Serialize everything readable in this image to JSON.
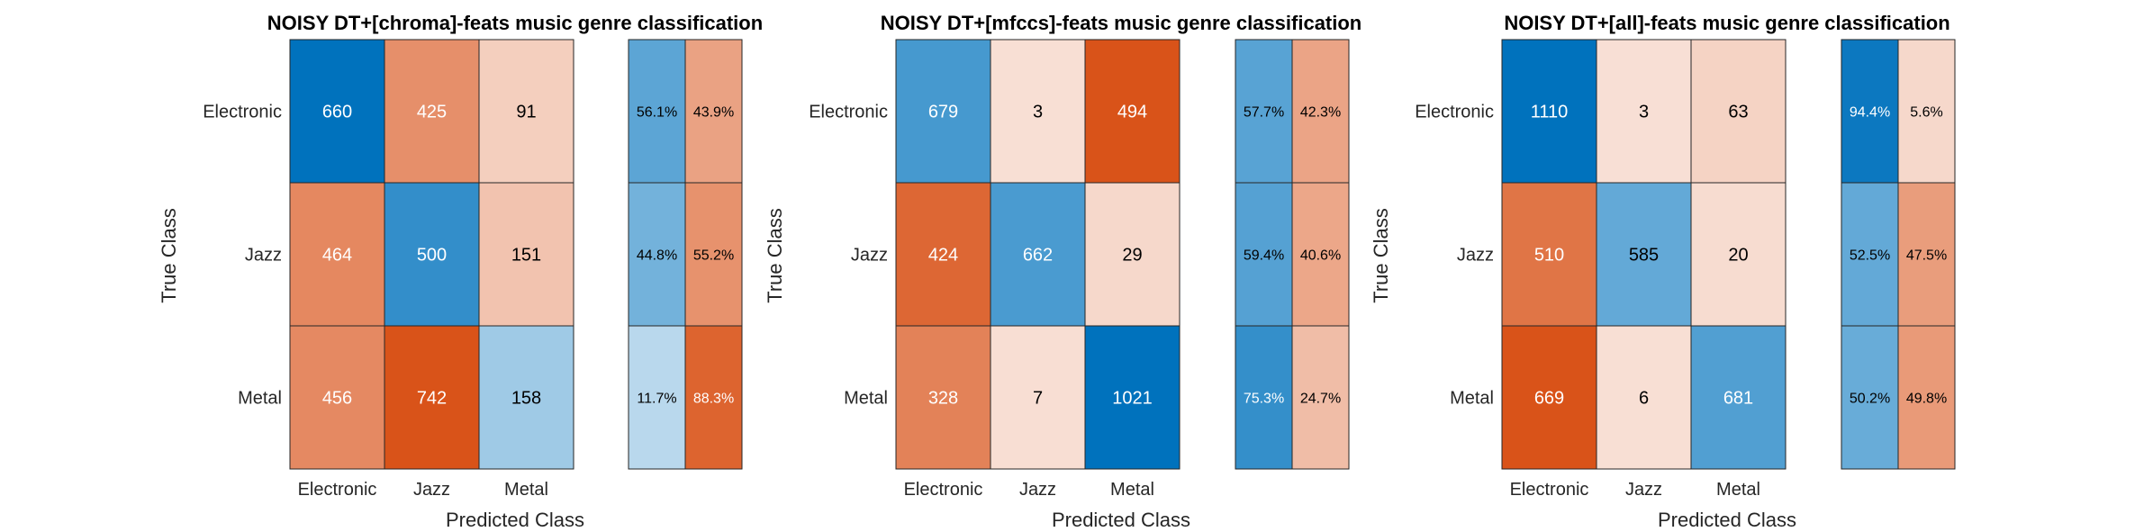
{
  "chart_data": [
    {
      "type": "heatmap",
      "title": "NOISY DT+[chroma]-feats music genre classification",
      "xlabel": "Predicted Class",
      "ylabel": "True Class",
      "classes": [
        "Electronic",
        "Jazz",
        "Metal"
      ],
      "matrix": [
        [
          660,
          425,
          91
        ],
        [
          464,
          500,
          151
        ],
        [
          456,
          742,
          158
        ]
      ],
      "row_summary": [
        [
          "56.1%",
          "43.9%"
        ],
        [
          "44.8%",
          "55.2%"
        ],
        [
          "11.7%",
          "88.3%"
        ]
      ]
    },
    {
      "type": "heatmap",
      "title": "NOISY DT+[mfccs]-feats music genre classification",
      "xlabel": "Predicted Class",
      "ylabel": "True Class",
      "classes": [
        "Electronic",
        "Jazz",
        "Metal"
      ],
      "matrix": [
        [
          679,
          3,
          494
        ],
        [
          424,
          662,
          29
        ],
        [
          328,
          7,
          1021
        ]
      ],
      "row_summary": [
        [
          "57.7%",
          "42.3%"
        ],
        [
          "59.4%",
          "40.6%"
        ],
        [
          "75.3%",
          "24.7%"
        ]
      ]
    },
    {
      "type": "heatmap",
      "title": "NOISY DT+[all]-feats music genre classification",
      "xlabel": "Predicted Class",
      "ylabel": "True Class",
      "classes": [
        "Electronic",
        "Jazz",
        "Metal"
      ],
      "matrix": [
        [
          1110,
          3,
          63
        ],
        [
          510,
          585,
          20
        ],
        [
          669,
          6,
          681
        ]
      ],
      "row_summary": [
        [
          "94.4%",
          "5.6%"
        ],
        [
          "52.5%",
          "47.5%"
        ],
        [
          "50.2%",
          "49.8%"
        ]
      ]
    }
  ],
  "colors": {
    "correct": "#0072bd",
    "incorrect": "#d95319",
    "base": "#ffffff",
    "grid": "#262626",
    "text": "#262626"
  }
}
